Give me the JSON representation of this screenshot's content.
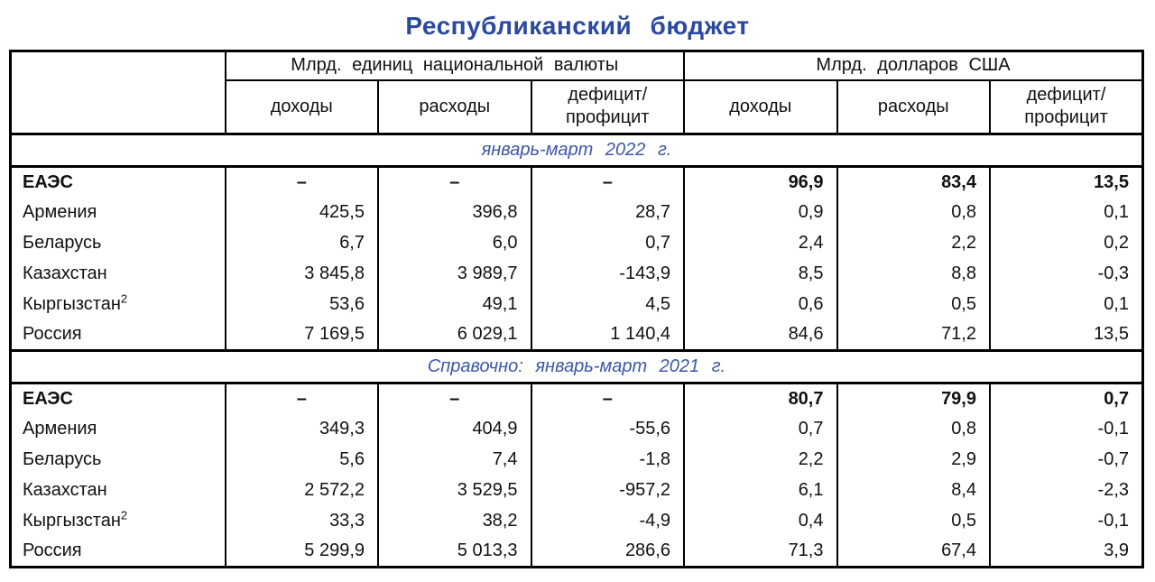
{
  "page": {
    "title": "Республиканский  бюджет"
  },
  "colors": {
    "title_blue": "#2b4a9f",
    "caption_blue": "#3b57a8",
    "border": "#000000"
  },
  "table": {
    "groups": [
      "Млрд. единиц национальной  валюты",
      "Млрд. долларов  США"
    ],
    "columns": [
      "доходы",
      "расходы",
      "дефицит/\nпрофицит"
    ],
    "sections": [
      {
        "caption": "январь-март  2022 г.",
        "rows": [
          {
            "name": "ЕАЭС",
            "bold": true,
            "values": [
              "–",
              "–",
              "–",
              "96,9",
              "83,4",
              "13,5"
            ]
          },
          {
            "name": "Армения",
            "values": [
              "425,5",
              "396,8",
              "28,7",
              "0,9",
              "0,8",
              "0,1"
            ]
          },
          {
            "name": "Беларусь",
            "values": [
              "6,7",
              "6,0",
              "0,7",
              "2,4",
              "2,2",
              "0,2"
            ]
          },
          {
            "name": "Казахстан",
            "values": [
              "3 845,8",
              "3 989,7",
              "-143,9",
              "8,5",
              "8,8",
              "-0,3"
            ]
          },
          {
            "name": "Кыргызстан",
            "sup": "2",
            "values": [
              "53,6",
              "49,1",
              "4,5",
              "0,6",
              "0,5",
              "0,1"
            ]
          },
          {
            "name": "Россия",
            "values": [
              "7 169,5",
              "6 029,1",
              "1 140,4",
              "84,6",
              "71,2",
              "13,5"
            ]
          }
        ]
      },
      {
        "caption": "Справочно:  январь-март  2021 г.",
        "rows": [
          {
            "name": "ЕАЭС",
            "bold": true,
            "values": [
              "–",
              "–",
              "–",
              "80,7",
              "79,9",
              "0,7"
            ]
          },
          {
            "name": "Армения",
            "values": [
              "349,3",
              "404,9",
              "-55,6",
              "0,7",
              "0,8",
              "-0,1"
            ]
          },
          {
            "name": "Беларусь",
            "values": [
              "5,6",
              "7,4",
              "-1,8",
              "2,2",
              "2,9",
              "-0,7"
            ]
          },
          {
            "name": "Казахстан",
            "values": [
              "2 572,2",
              "3 529,5",
              "-957,2",
              "6,1",
              "8,4",
              "-2,3"
            ]
          },
          {
            "name": "Кыргызстан",
            "sup": "2",
            "values": [
              "33,3",
              "38,2",
              "-4,9",
              "0,4",
              "0,5",
              "-0,1"
            ]
          },
          {
            "name": "Россия",
            "values": [
              "5 299,9",
              "5 013,3",
              "286,6",
              "71,3",
              "67,4",
              "3,9"
            ]
          }
        ]
      }
    ]
  }
}
